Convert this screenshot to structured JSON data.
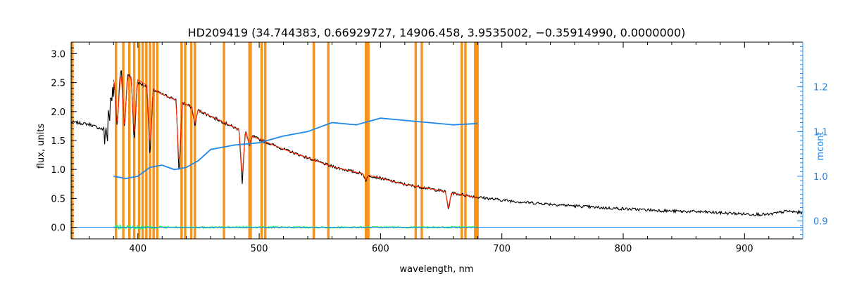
{
  "chart_data": {
    "type": "line",
    "title": "HD209419    (34.744383, 0.66929727, 14906.458, 3.9535002, −0.35914990, 0.0000000)",
    "xlabel": "wavelength, nm",
    "ylabel": "flux, units",
    "y2label": "mcont",
    "xlim": [
      345,
      948
    ],
    "ylim": [
      -0.2,
      3.2
    ],
    "y2lim": [
      0.86,
      1.3
    ],
    "x_ticks": [
      400,
      500,
      600,
      700,
      800,
      900
    ],
    "y_ticks": [
      0.0,
      0.5,
      1.0,
      1.5,
      2.0,
      2.5,
      3.0
    ],
    "y_tick_labels": [
      "0.0",
      "0.5",
      "1.0",
      "1.5",
      "2.0",
      "2.5",
      "3.0"
    ],
    "y2_ticks": [
      0.9,
      1.0,
      1.1,
      1.2
    ],
    "y2_tick_labels": [
      "0.9",
      "1.0",
      "1.1",
      "1.2"
    ],
    "masked_regions": [
      [
        345,
        347
      ],
      [
        381,
        383
      ],
      [
        387,
        389
      ],
      [
        392,
        394
      ],
      [
        396,
        398
      ],
      [
        400,
        402
      ],
      [
        403,
        405
      ],
      [
        406,
        408
      ],
      [
        409,
        411
      ],
      [
        412,
        414
      ],
      [
        415,
        417
      ],
      [
        435,
        437
      ],
      [
        438,
        440
      ],
      [
        443,
        445
      ],
      [
        446,
        448
      ],
      [
        470,
        472
      ],
      [
        491,
        494
      ],
      [
        501,
        503
      ],
      [
        504,
        506
      ],
      [
        544,
        546
      ],
      [
        556,
        558
      ],
      [
        587,
        591
      ],
      [
        628,
        630
      ],
      [
        633,
        635
      ],
      [
        666,
        668
      ],
      [
        669,
        671
      ],
      [
        677,
        681
      ]
    ],
    "series": [
      {
        "color": "#000000",
        "axis": "left",
        "x": [
          345,
          360,
          370,
          375,
          380,
          385,
          390,
          395,
          400,
          410,
          420,
          430,
          440,
          450,
          460,
          470,
          480,
          490,
          500,
          520,
          540,
          560,
          580,
          600,
          620,
          640,
          660,
          680,
          700,
          720,
          740,
          760,
          780,
          800,
          820,
          840,
          860,
          880,
          900,
          920,
          935,
          948
        ],
        "y": [
          1.82,
          1.78,
          1.7,
          1.65,
          2.5,
          2.7,
          2.68,
          2.6,
          2.5,
          2.4,
          2.3,
          2.22,
          2.12,
          2.02,
          1.92,
          1.82,
          1.72,
          1.62,
          1.52,
          1.35,
          1.2,
          1.05,
          0.95,
          0.85,
          0.74,
          0.67,
          0.59,
          0.52,
          0.47,
          0.43,
          0.4,
          0.37,
          0.34,
          0.32,
          0.3,
          0.28,
          0.27,
          0.25,
          0.23,
          0.22,
          0.28,
          0.25
        ]
      },
      {
        "color": "#ff2a00",
        "axis": "left",
        "x": [
          380,
          390,
          400,
          410,
          420,
          430,
          440,
          450,
          460,
          470,
          480,
          490,
          500,
          520,
          540,
          560,
          580,
          600,
          620,
          640,
          660,
          680
        ],
        "y": [
          2.55,
          2.62,
          2.55,
          2.42,
          2.3,
          2.21,
          2.12,
          2.02,
          1.92,
          1.82,
          1.72,
          1.62,
          1.52,
          1.35,
          1.2,
          1.05,
          0.95,
          0.85,
          0.74,
          0.67,
          0.59,
          0.51
        ]
      },
      {
        "color": "#1f88e8",
        "axis": "right",
        "x": [
          380,
          390,
          400,
          410,
          420,
          430,
          440,
          450,
          460,
          480,
          500,
          520,
          540,
          560,
          580,
          600,
          620,
          640,
          660,
          680
        ],
        "y": [
          1.0,
          0.995,
          1.0,
          1.02,
          1.025,
          1.015,
          1.02,
          1.035,
          1.06,
          1.07,
          1.075,
          1.09,
          1.1,
          1.12,
          1.115,
          1.13,
          1.125,
          1.12,
          1.115,
          1.118
        ]
      },
      {
        "color": "#2aef6a",
        "axis": "left",
        "x": [
          380,
          420,
          460,
          500,
          540,
          580,
          620,
          660,
          680
        ],
        "y": [
          0.0,
          0.0,
          0.0,
          0.0,
          0.0,
          0.0,
          0.0,
          0.0,
          0.0
        ]
      },
      {
        "color": "#1f88e8",
        "axis": "left",
        "x": [
          345,
          948
        ],
        "y": [
          0.0,
          0.0
        ]
      }
    ],
    "absorption_lines": [
      {
        "x": 383,
        "depth": 0.9
      },
      {
        "x": 389,
        "depth": 1.0
      },
      {
        "x": 397,
        "depth": 1.1
      },
      {
        "x": 410,
        "depth": 1.2
      },
      {
        "x": 434,
        "depth": 1.3
      },
      {
        "x": 447,
        "depth": 0.3
      },
      {
        "x": 486,
        "depth": 0.9
      },
      {
        "x": 492,
        "depth": 0.2
      },
      {
        "x": 588,
        "depth": 0.1
      },
      {
        "x": 656,
        "depth": 0.3
      }
    ],
    "colors": {
      "masks": "#f7941d",
      "axis_left": "#000000",
      "axis_right": "#1f88e8",
      "observed": "#000000",
      "model": "#ff2a00",
      "continuum": "#1f88e8",
      "residual": "#2aef6a"
    },
    "grid": false,
    "legend": "none"
  }
}
